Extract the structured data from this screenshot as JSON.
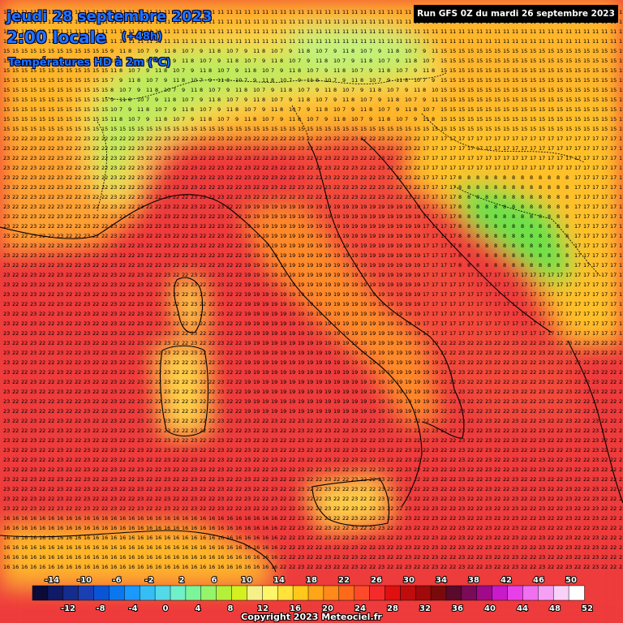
{
  "header": {
    "date": "jeudi 28 septembre 2023",
    "time": "2:00 locale",
    "lead": "(+48h)",
    "parameter": "Températures HD à 2m (°C)",
    "run": "Run GFS 0Z du mardi 26 septembre 2023"
  },
  "footer": {
    "copyright": "Copyright 2023 Meteociel.fr"
  },
  "colorbar": {
    "top_labels": [
      "-14",
      "-10",
      "-6",
      "-2",
      "2",
      "6",
      "10",
      "14",
      "18",
      "22",
      "26",
      "30",
      "34",
      "38",
      "42",
      "46",
      "50"
    ],
    "bottom_labels": [
      "-12",
      "-8",
      "-4",
      "0",
      "4",
      "8",
      "12",
      "16",
      "20",
      "24",
      "28",
      "32",
      "36",
      "40",
      "44",
      "48",
      "52"
    ],
    "colors": [
      "#0b0b3a",
      "#0f1b66",
      "#142c8c",
      "#1a3fb3",
      "#0a55d6",
      "#0b77ee",
      "#1a99ff",
      "#35bdf5",
      "#54d9e8",
      "#6ff0c8",
      "#7cf59a",
      "#95f56a",
      "#b4f03a",
      "#d5f020",
      "#f5f08a",
      "#fff56a",
      "#ffe23a",
      "#ffc81a",
      "#ffa51a",
      "#ff8a1a",
      "#ff6a1a",
      "#ff4a2a",
      "#f52a2a",
      "#e01010",
      "#c00c0c",
      "#a00a0a",
      "#7a0a0a",
      "#5a0a2a",
      "#7a0a5a",
      "#a00a8a",
      "#c81ac8",
      "#e840e8",
      "#f070f0",
      "#f5a0f5",
      "#f8d0f8",
      "#ffffff"
    ]
  }
}
